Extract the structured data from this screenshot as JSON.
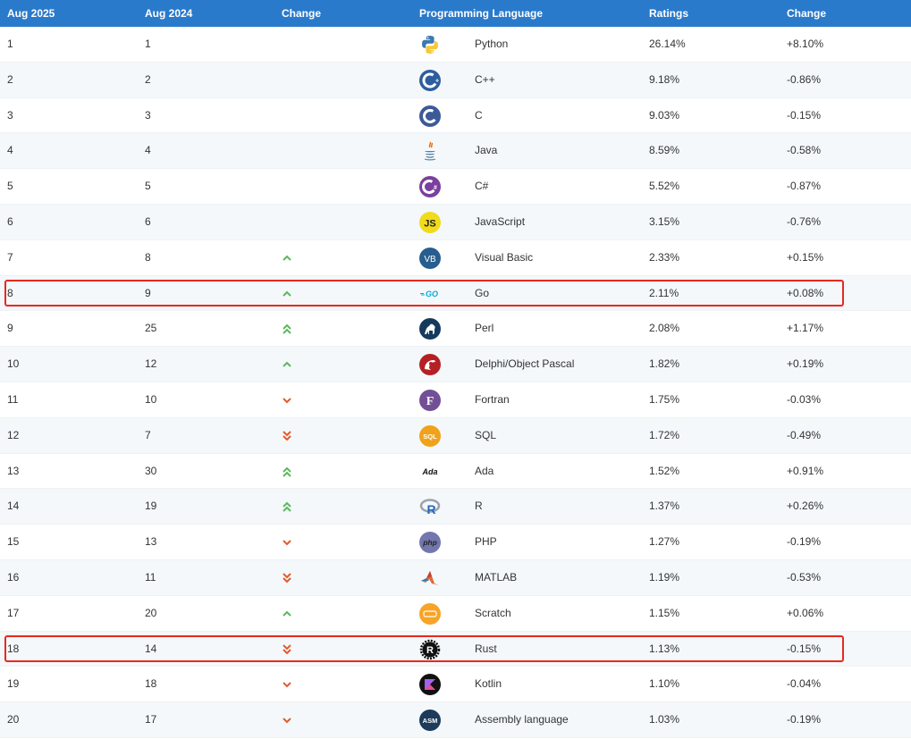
{
  "header": {
    "aug2025": "Aug 2025",
    "aug2024": "Aug 2024",
    "change_col": "Change",
    "language": "Programming Language",
    "ratings": "Ratings",
    "change_pct": "Change"
  },
  "rows": [
    {
      "r25": "1",
      "r24": "1",
      "trend": "none",
      "icon": "python-icon",
      "lang": "Python",
      "rating": "26.14%",
      "change": "+8.10%"
    },
    {
      "r25": "2",
      "r24": "2",
      "trend": "none",
      "icon": "cpp-icon",
      "lang": "C++",
      "rating": "9.18%",
      "change": "-0.86%"
    },
    {
      "r25": "3",
      "r24": "3",
      "trend": "none",
      "icon": "c-icon",
      "lang": "C",
      "rating": "9.03%",
      "change": "-0.15%"
    },
    {
      "r25": "4",
      "r24": "4",
      "trend": "none",
      "icon": "java-icon",
      "lang": "Java",
      "rating": "8.59%",
      "change": "-0.58%"
    },
    {
      "r25": "5",
      "r24": "5",
      "trend": "none",
      "icon": "csharp-icon",
      "lang": "C#",
      "rating": "5.52%",
      "change": "-0.87%"
    },
    {
      "r25": "6",
      "r24": "6",
      "trend": "none",
      "icon": "javascript-icon",
      "lang": "JavaScript",
      "rating": "3.15%",
      "change": "-0.76%"
    },
    {
      "r25": "7",
      "r24": "8",
      "trend": "up",
      "icon": "visual-basic-icon",
      "lang": "Visual Basic",
      "rating": "2.33%",
      "change": "+0.15%"
    },
    {
      "r25": "8",
      "r24": "9",
      "trend": "up",
      "icon": "go-icon",
      "lang": "Go",
      "rating": "2.11%",
      "change": "+0.08%"
    },
    {
      "r25": "9",
      "r24": "25",
      "trend": "upup",
      "icon": "perl-icon",
      "lang": "Perl",
      "rating": "2.08%",
      "change": "+1.17%"
    },
    {
      "r25": "10",
      "r24": "12",
      "trend": "up",
      "icon": "delphi-icon",
      "lang": "Delphi/Object Pascal",
      "rating": "1.82%",
      "change": "+0.19%"
    },
    {
      "r25": "11",
      "r24": "10",
      "trend": "down",
      "icon": "fortran-icon",
      "lang": "Fortran",
      "rating": "1.75%",
      "change": "-0.03%"
    },
    {
      "r25": "12",
      "r24": "7",
      "trend": "downdown",
      "icon": "sql-icon",
      "lang": "SQL",
      "rating": "1.72%",
      "change": "-0.49%"
    },
    {
      "r25": "13",
      "r24": "30",
      "trend": "upup",
      "icon": "ada-icon",
      "lang": "Ada",
      "rating": "1.52%",
      "change": "+0.91%"
    },
    {
      "r25": "14",
      "r24": "19",
      "trend": "upup",
      "icon": "r-icon",
      "lang": "R",
      "rating": "1.37%",
      "change": "+0.26%"
    },
    {
      "r25": "15",
      "r24": "13",
      "trend": "down",
      "icon": "php-icon",
      "lang": "PHP",
      "rating": "1.27%",
      "change": "-0.19%"
    },
    {
      "r25": "16",
      "r24": "11",
      "trend": "downdown",
      "icon": "matlab-icon",
      "lang": "MATLAB",
      "rating": "1.19%",
      "change": "-0.53%"
    },
    {
      "r25": "17",
      "r24": "20",
      "trend": "up",
      "icon": "scratch-icon",
      "lang": "Scratch",
      "rating": "1.15%",
      "change": "+0.06%"
    },
    {
      "r25": "18",
      "r24": "14",
      "trend": "downdown",
      "icon": "rust-icon",
      "lang": "Rust",
      "rating": "1.13%",
      "change": "-0.15%"
    },
    {
      "r25": "19",
      "r24": "18",
      "trend": "down",
      "icon": "kotlin-icon",
      "lang": "Kotlin",
      "rating": "1.10%",
      "change": "-0.04%"
    },
    {
      "r25": "20",
      "r24": "17",
      "trend": "down",
      "icon": "assembly-icon",
      "lang": "Assembly language",
      "rating": "1.03%",
      "change": "-0.19%"
    }
  ],
  "icon_labels": {
    "js": "JS",
    "vb": "VB",
    "go": "GO",
    "sql": "SQL",
    "ada": "Ada",
    "php": "php",
    "asm": "ASM"
  },
  "highlighted_languages": [
    "Go",
    "Rust"
  ],
  "colors": {
    "header_bg": "#2a7acb",
    "row_alt_bg": "#f4f8fb",
    "trend_up": "#5cb85c",
    "trend_down": "#e35b2d",
    "highlight_border": "#e8281f"
  }
}
